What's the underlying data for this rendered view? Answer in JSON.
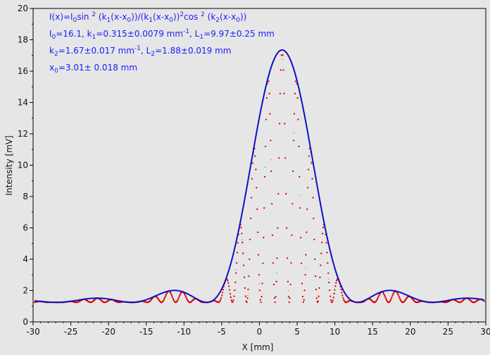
{
  "chart_data": {
    "type": "line",
    "xlabel": "X [mm]",
    "ylabel": "Intensity [mV]",
    "xlim": [
      -30,
      30
    ],
    "ylim": [
      0,
      20
    ],
    "x_ticks": [
      "-30",
      "-25",
      "-20",
      "-15",
      "-10",
      "-5",
      "0",
      "5",
      "10",
      "15",
      "20",
      "25",
      "30"
    ],
    "y_ticks": [
      "0",
      "2",
      "4",
      "6",
      "8",
      "10",
      "12",
      "14",
      "16",
      "18",
      "20"
    ],
    "grid": false,
    "fit": {
      "I0": 16.1,
      "k1": 0.315,
      "k2": 1.67,
      "x0": 3.01,
      "baseline": 1.25,
      "formula_lines": [
        {
          "parts": [
            [
              "I(x)=I",
              ""
            ],
            [
              "0",
              "sub"
            ],
            [
              "sin ",
              ""
            ],
            [
              "2",
              "sup"
            ],
            [
              " (k",
              ""
            ],
            [
              "1",
              "sub"
            ],
            [
              "(x-x",
              ""
            ],
            [
              "0",
              "sub"
            ],
            [
              "))/(k",
              ""
            ],
            [
              "1",
              "sub"
            ],
            [
              "(x-x",
              ""
            ],
            [
              "0",
              "sub"
            ],
            [
              "))",
              ""
            ],
            [
              "2",
              "sup"
            ],
            [
              "cos ",
              ""
            ],
            [
              "2",
              "sup"
            ],
            [
              " (k",
              ""
            ],
            [
              "2",
              "sub"
            ],
            [
              "(x-x",
              ""
            ],
            [
              "0",
              "sub"
            ],
            [
              "))",
              ""
            ]
          ]
        },
        {
          "parts": [
            [
              "I",
              ""
            ],
            [
              "0",
              "sub"
            ],
            [
              "=16.1,  k",
              ""
            ],
            [
              "1",
              "sub"
            ],
            [
              "=0.315±0.0079 mm",
              ""
            ],
            [
              "-1",
              "sup"
            ],
            [
              ",   L",
              ""
            ],
            [
              "1",
              "sub"
            ],
            [
              "=9.97±0.25 mm",
              ""
            ]
          ]
        },
        {
          "parts": [
            [
              "k",
              ""
            ],
            [
              "2",
              "sub"
            ],
            [
              "=1.67±0.017 mm",
              ""
            ],
            [
              "-1",
              "sup"
            ],
            [
              ",   L",
              ""
            ],
            [
              "2",
              "sub"
            ],
            [
              "=1.88±0.019 mm",
              ""
            ]
          ]
        },
        {
          "parts": [
            [
              "x",
              ""
            ],
            [
              "0",
              "sub"
            ],
            [
              "=3.01±  0.018 mm",
              ""
            ]
          ]
        }
      ]
    },
    "series": [
      {
        "color": "#1010c8",
        "style": "envelope-line"
      },
      {
        "color": "#e00000",
        "style": "measured-points"
      },
      {
        "color": "#208020",
        "style": "faint-points"
      }
    ],
    "colors": {
      "background": "#e6e6e6",
      "frame": "#000000",
      "text": "#111111",
      "fit_text": "#1a1aff"
    }
  }
}
